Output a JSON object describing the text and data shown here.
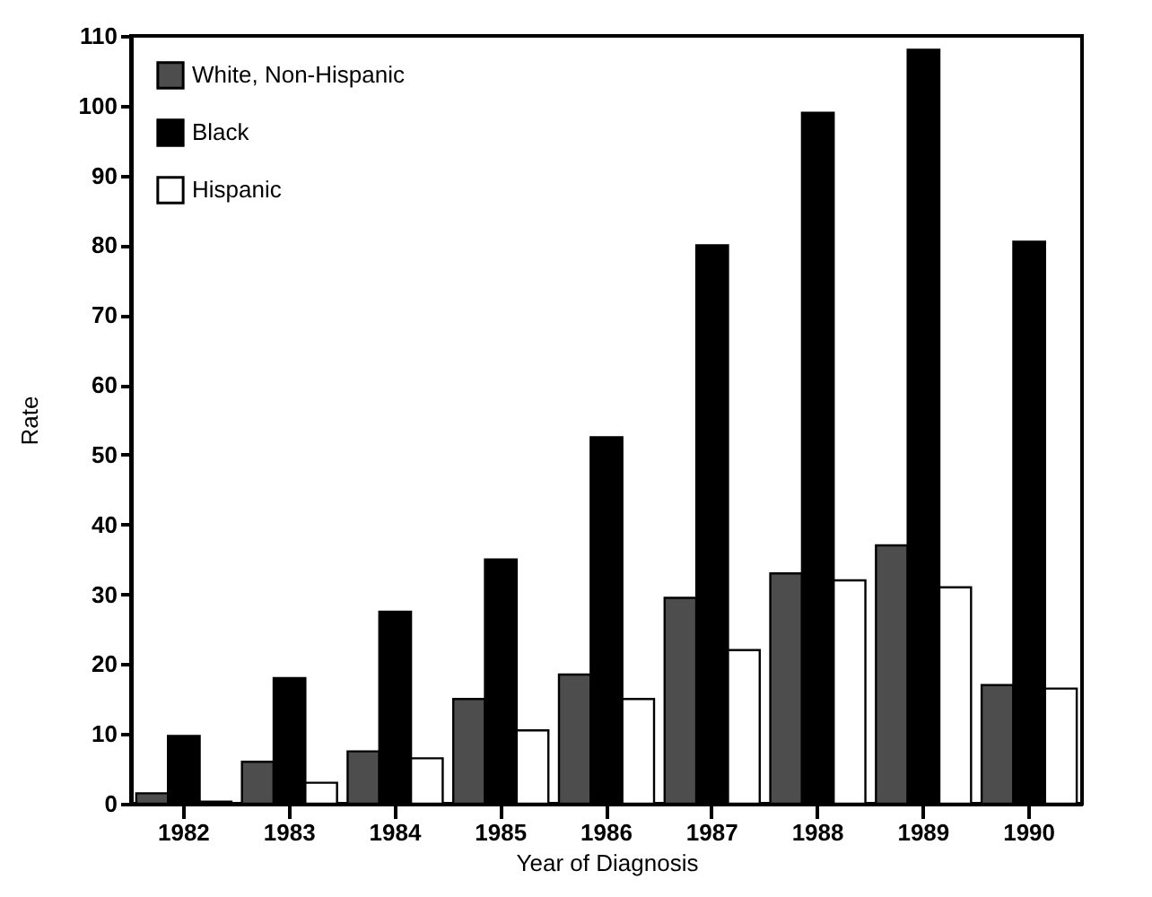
{
  "chart_data": {
    "type": "bar",
    "xlabel": "Year of Diagnosis",
    "ylabel": "Rate",
    "categories": [
      "1982",
      "1983",
      "1984",
      "1985",
      "1986",
      "1987",
      "1988",
      "1989",
      "1990"
    ],
    "series": [
      {
        "name": "White, Non-Hispanic",
        "color": "#4d4d4d",
        "values": [
          1.5,
          6,
          7.5,
          15,
          18.5,
          29.5,
          33,
          37,
          17
        ]
      },
      {
        "name": "Black",
        "color": "#000000",
        "values": [
          9.7,
          18,
          27.5,
          35,
          52.5,
          80,
          99,
          108,
          80.5
        ]
      },
      {
        "name": "Hispanic",
        "color": "#ffffff",
        "values": [
          0.3,
          3,
          6.5,
          10.5,
          15,
          22,
          32,
          31,
          16.5
        ]
      }
    ],
    "ylim": [
      0,
      110
    ],
    "yticks": [
      0,
      10,
      20,
      30,
      40,
      50,
      60,
      70,
      80,
      90,
      100,
      110
    ],
    "grid": false,
    "legend": "top left"
  }
}
